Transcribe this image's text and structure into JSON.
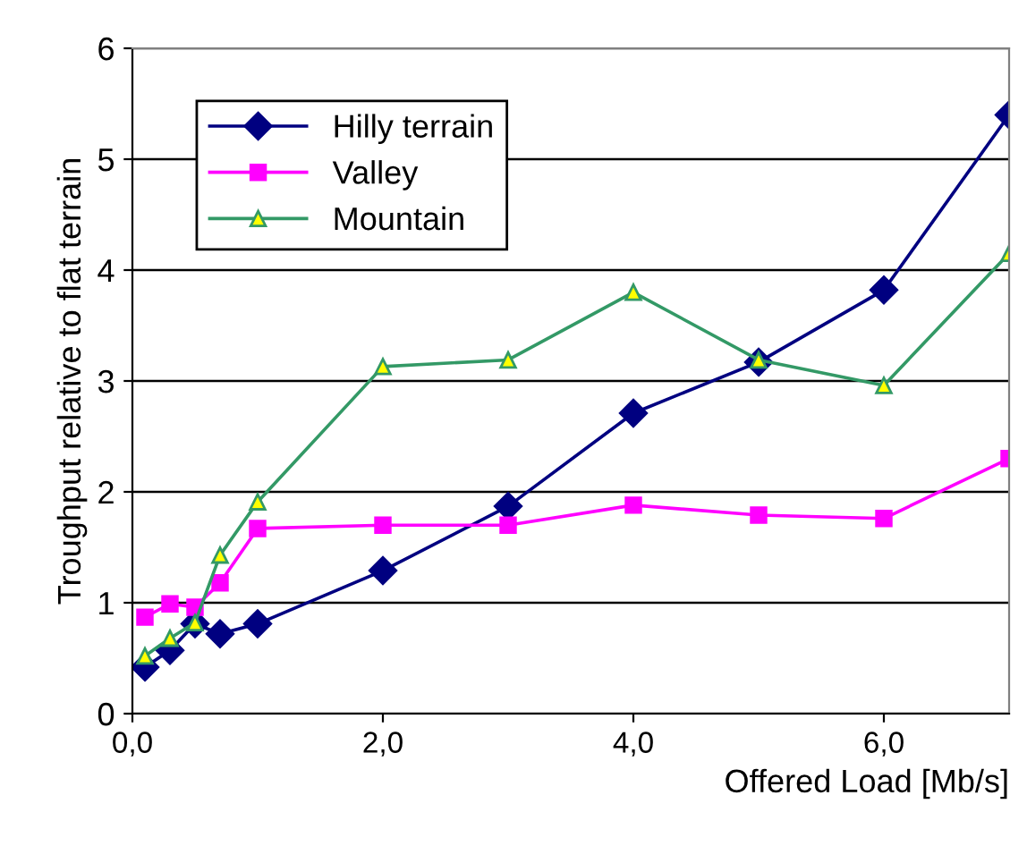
{
  "chart_data": {
    "type": "line",
    "xlabel": "Offered Load [Mb/s]",
    "ylabel": "Troughput relative to flat terrain",
    "x": [
      0.1,
      0.3,
      0.5,
      0.7,
      1.0,
      2.0,
      3.0,
      4.0,
      5.0,
      6.0,
      7.0
    ],
    "xlim": [
      0,
      7
    ],
    "xticks": [
      {
        "value": 0,
        "label": "0,0"
      },
      {
        "value": 2,
        "label": "2,0"
      },
      {
        "value": 4,
        "label": "4,0"
      },
      {
        "value": 6,
        "label": "6,0"
      }
    ],
    "ylim": [
      0,
      6
    ],
    "yticks": [
      0,
      1,
      2,
      3,
      4,
      5,
      6
    ],
    "grid": "y",
    "legend": "top left",
    "series": [
      {
        "name": "Hilly terrain",
        "color": "#000080",
        "marker": "diamond",
        "values": [
          0.42,
          0.57,
          0.81,
          0.72,
          0.81,
          1.29,
          1.87,
          2.71,
          3.17,
          3.82,
          5.4
        ]
      },
      {
        "name": "Valley",
        "color": "#ff00ff",
        "marker": "square",
        "values": [
          0.87,
          0.99,
          0.96,
          1.18,
          1.67,
          1.7,
          1.7,
          1.88,
          1.79,
          1.76,
          2.3
        ]
      },
      {
        "name": "Mountain",
        "color": "#339966",
        "marker": "triangle",
        "values": [
          0.52,
          0.68,
          0.82,
          1.43,
          1.91,
          3.13,
          3.19,
          3.8,
          3.19,
          2.96,
          4.15
        ]
      }
    ]
  }
}
